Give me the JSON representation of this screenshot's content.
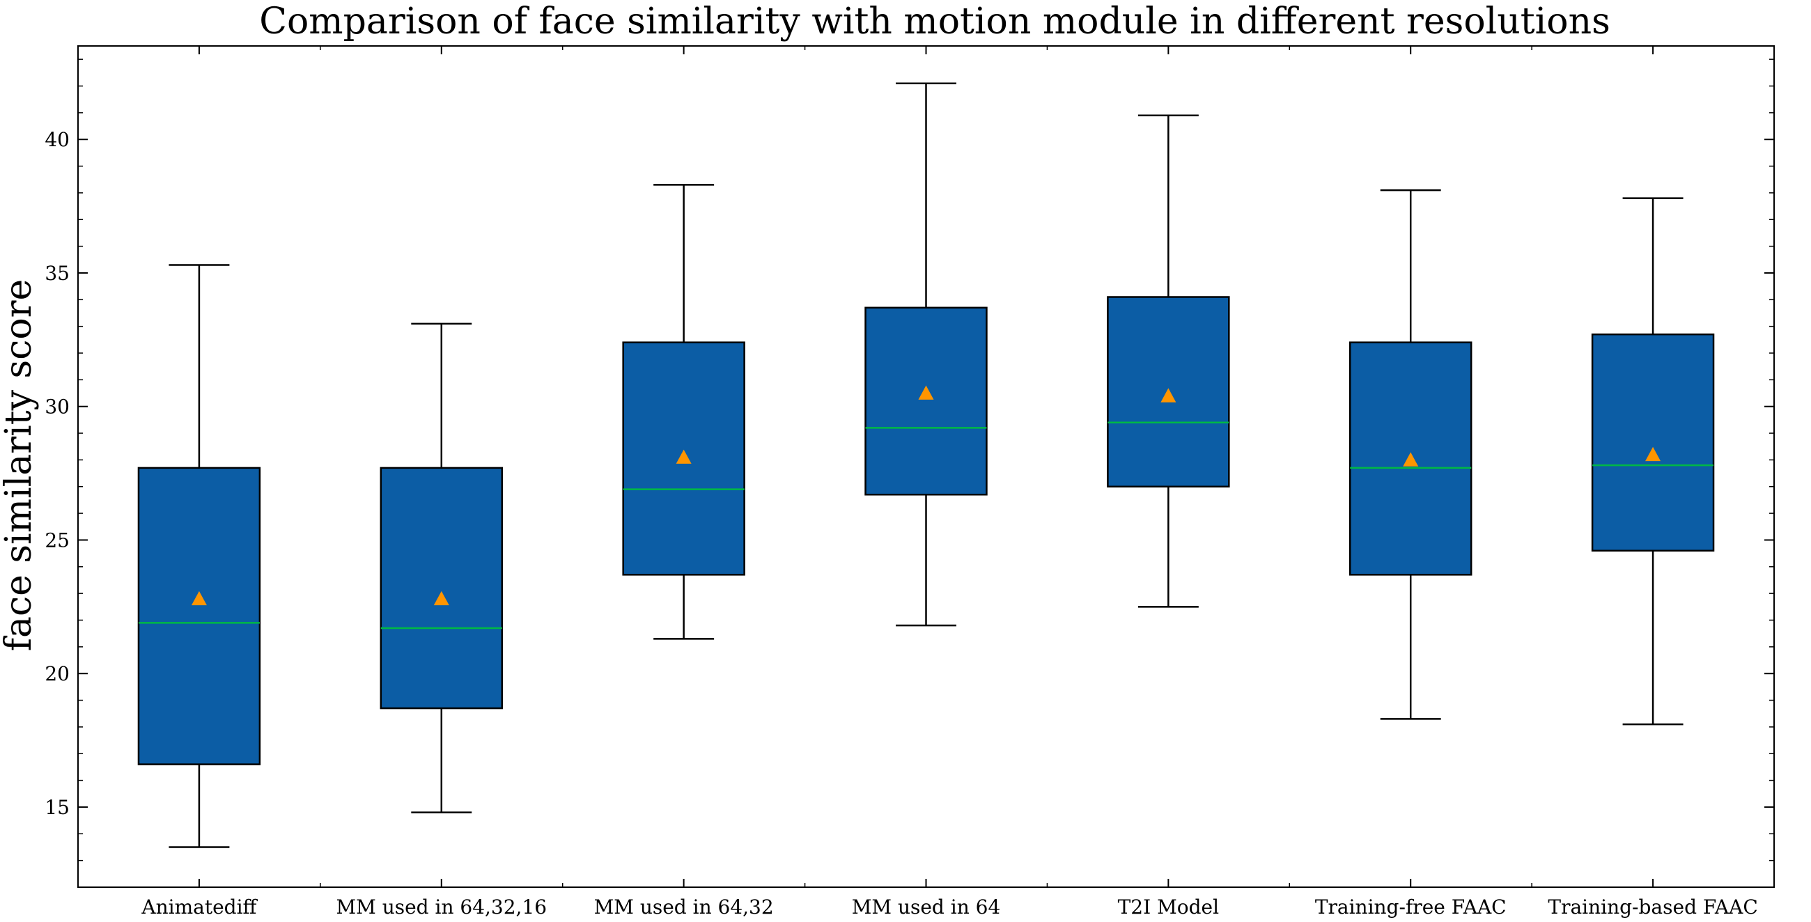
{
  "chart_data": {
    "type": "box",
    "title": "Comparison of face similarity with motion module in different resolutions",
    "xlabel": "",
    "ylabel": "face similarity score",
    "ylim": [
      12,
      43.5
    ],
    "yticks": [
      15,
      20,
      25,
      30,
      35,
      40
    ],
    "yticks_minor_step": 1,
    "categories": [
      "Animatediff",
      "MM used in 64,32,16",
      "MM used in 64,32",
      "MM used in 64",
      "T2I Model",
      "Training-free FAAC",
      "Training-based FAAC"
    ],
    "boxes": [
      {
        "whisker_low": 13.5,
        "q1": 16.6,
        "median": 21.9,
        "q3": 27.7,
        "whisker_high": 35.3,
        "mean": 22.8
      },
      {
        "whisker_low": 14.8,
        "q1": 18.7,
        "median": 21.7,
        "q3": 27.7,
        "whisker_high": 33.1,
        "mean": 22.8
      },
      {
        "whisker_low": 21.3,
        "q1": 23.7,
        "median": 26.9,
        "q3": 32.4,
        "whisker_high": 38.3,
        "mean": 28.1
      },
      {
        "whisker_low": 21.8,
        "q1": 26.7,
        "median": 29.2,
        "q3": 33.7,
        "whisker_high": 42.1,
        "mean": 30.5
      },
      {
        "whisker_low": 22.5,
        "q1": 27.0,
        "median": 29.4,
        "q3": 34.1,
        "whisker_high": 40.9,
        "mean": 30.4
      },
      {
        "whisker_low": 18.3,
        "q1": 23.7,
        "median": 27.7,
        "q3": 32.4,
        "whisker_high": 38.1,
        "mean": 28.0
      },
      {
        "whisker_low": 18.1,
        "q1": 24.6,
        "median": 27.8,
        "q3": 32.7,
        "whisker_high": 37.8,
        "mean": 28.2
      }
    ],
    "colors": {
      "box_fill": "#0c5da5",
      "box_edge": "#000000",
      "median": "#00b945",
      "mean_marker": "#ff9500",
      "whisker": "#000000"
    },
    "grid": false,
    "legend": "none"
  }
}
